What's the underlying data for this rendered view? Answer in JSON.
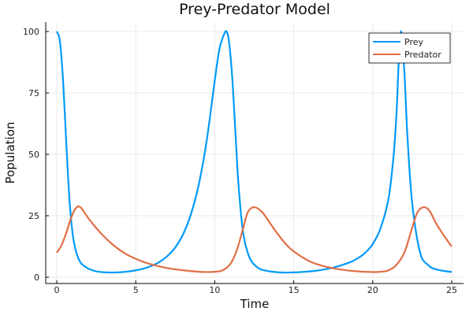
{
  "chart_data": {
    "type": "line",
    "title": "Prey-Predator Model",
    "xlabel": "Time",
    "ylabel": "Population",
    "xlim": [
      0,
      25
    ],
    "ylim": [
      0,
      100
    ],
    "xticks": [
      0,
      5,
      10,
      15,
      20,
      25
    ],
    "yticks": [
      0,
      25,
      50,
      75,
      100
    ],
    "grid": true,
    "legend_position": "top-right",
    "series": [
      {
        "name": "Prey",
        "color": "#009AFA",
        "x": [
          0,
          0.2,
          0.4,
          0.6,
          0.8,
          1.0,
          1.2,
          1.5,
          2.0,
          2.5,
          3.0,
          3.5,
          4.0,
          4.5,
          5.0,
          5.5,
          6.0,
          6.5,
          7.0,
          7.5,
          8.0,
          8.5,
          9.0,
          9.5,
          10.0,
          10.3,
          10.6,
          10.75,
          10.9,
          11.1,
          11.3,
          11.5,
          11.8,
          12.2,
          12.7,
          13.2,
          14.0,
          14.7,
          15.5,
          16.5,
          17.5,
          18.5,
          19.0,
          19.5,
          20.0,
          20.5,
          21.0,
          21.3,
          21.5,
          21.65,
          21.8,
          22.0,
          22.2,
          22.5,
          23.0,
          23.5,
          24.0,
          25.0
        ],
        "y": [
          100,
          96,
          80,
          55,
          32,
          18,
          11,
          6,
          3.5,
          2.4,
          2.0,
          1.9,
          2.0,
          2.3,
          2.8,
          3.5,
          4.6,
          6.2,
          8.6,
          12.1,
          17.5,
          25.8,
          38.0,
          56.0,
          80.0,
          93.0,
          99.0,
          100,
          96.0,
          82.0,
          60.0,
          38.0,
          18.0,
          8.0,
          4.0,
          2.7,
          2.0,
          1.9,
          2.1,
          2.7,
          3.9,
          5.9,
          7.5,
          9.8,
          13.5,
          20.0,
          32.0,
          48.0,
          66.0,
          88.0,
          100,
          84.0,
          57.0,
          30.0,
          10.0,
          5.0,
          3.2,
          2.1
        ]
      },
      {
        "name": "Predator",
        "color": "#E26F46",
        "x": [
          0,
          0.3,
          0.6,
          0.9,
          1.2,
          1.5,
          2.0,
          2.5,
          3.0,
          3.5,
          4.0,
          4.5,
          5.0,
          5.5,
          6.0,
          7.0,
          8.0,
          9.0,
          9.5,
          10.0,
          10.5,
          11.0,
          11.4,
          11.8,
          12.1,
          12.5,
          13.0,
          13.5,
          14.0,
          14.5,
          15.0,
          16.0,
          17.0,
          18.0,
          19.0,
          20.0,
          20.5,
          21.0,
          21.5,
          22.0,
          22.4,
          22.8,
          23.2,
          23.6,
          24.0,
          24.5,
          25.0
        ],
        "y": [
          10,
          13,
          18,
          24,
          28,
          28.5,
          24,
          20,
          16.5,
          13.5,
          11,
          9,
          7.5,
          6.2,
          5.2,
          3.7,
          2.8,
          2.2,
          2.1,
          2.2,
          2.8,
          5.5,
          11,
          20,
          26.5,
          28.5,
          26.5,
          22,
          17.5,
          13.5,
          10.5,
          6.5,
          4.3,
          3.1,
          2.4,
          2.1,
          2.2,
          2.8,
          5,
          10,
          18,
          26,
          28.5,
          27,
          22,
          17,
          12.5
        ]
      }
    ]
  }
}
